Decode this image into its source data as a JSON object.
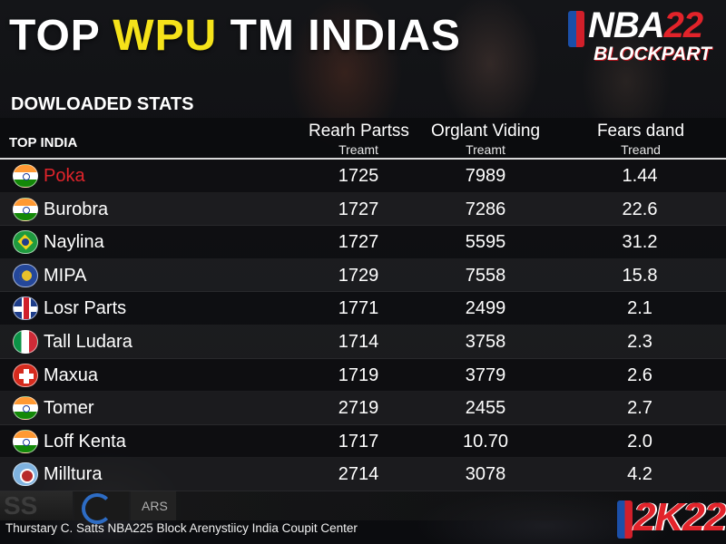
{
  "header": {
    "title_part1": "TOP ",
    "title_accent": "WPU",
    "title_part2": " TM INDIAS",
    "logo_main": "NBA",
    "logo_num": "22",
    "logo_sub": "BLOCKPART"
  },
  "section": {
    "label": "DOWLOADED STATS",
    "first_col_label": "TOP INDIA"
  },
  "columns": [
    {
      "main": "Rearh Partss",
      "sub": "Treamt"
    },
    {
      "main": "Orglant Viding",
      "sub": "Treamt"
    },
    {
      "main": "Fears dand",
      "sub": "Treand"
    }
  ],
  "rows": [
    {
      "flag": "india-flag",
      "name": "Poka",
      "c1": "1725",
      "c2": "7989",
      "c3": "1.44"
    },
    {
      "flag": "india-flag",
      "name": "Burobra",
      "c1": "1727",
      "c2": "7286",
      "c3": "22.6"
    },
    {
      "flag": "brazil-flag",
      "name": "Naylina",
      "c1": "1727",
      "c2": "5595",
      "c3": "31.2"
    },
    {
      "flag": "blue-flag",
      "name": "MIPA",
      "c1": "1729",
      "c2": "7558",
      "c3": "15.8"
    },
    {
      "flag": "uk-flag",
      "name": "Losr Parts",
      "c1": "1771",
      "c2": "2499",
      "c3": "2.1"
    },
    {
      "flag": "italy-flag",
      "name": "Tall Ludara",
      "c1": "1714",
      "c2": "3758",
      "c3": "2.3"
    },
    {
      "flag": "swiss-flag",
      "name": "Maxua",
      "c1": "1719",
      "c2": "3779",
      "c3": "2.6"
    },
    {
      "flag": "india-flag",
      "name": "Tomer",
      "c1": "2719",
      "c2": "2455",
      "c3": "2.7"
    },
    {
      "flag": "india-flag",
      "name": "Loff Kenta",
      "c1": "1717",
      "c2": "10.70",
      "c3": "2.0"
    },
    {
      "flag": "circle-flag",
      "name": "Milltura",
      "c1": "2714",
      "c2": "3078",
      "c3": "4.2"
    }
  ],
  "bottom": {
    "tile_label": "ARS",
    "footer": "Thurstary C. Satts NBA225 Block Arenystiicy India Coupit Center",
    "logo_2k": "2K22"
  },
  "colors": {
    "accent_yellow": "#f5e31a",
    "highlight_red": "#e0242b",
    "background": "#0c0d10"
  }
}
